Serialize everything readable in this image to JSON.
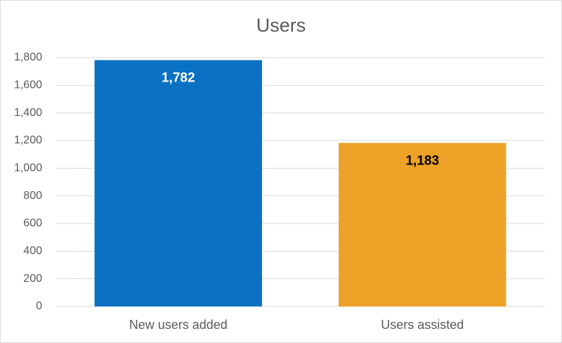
{
  "chart_data": {
    "type": "bar",
    "title": "Users",
    "categories": [
      "New users added",
      "Users assisted"
    ],
    "values": [
      1782,
      1183
    ],
    "value_labels": [
      "1,782",
      "1,183"
    ],
    "colors": [
      "#0b72c3",
      "#eda126"
    ],
    "value_label_colors": [
      "#ffffff",
      "#000000"
    ],
    "ylim": [
      0,
      1800
    ],
    "yticks": [
      0,
      200,
      400,
      600,
      800,
      {
        "value": 1000,
        "label": "1,000"
      },
      {
        "value": 1200,
        "label": "1,200"
      },
      {
        "value": 1400,
        "label": "1,400"
      },
      {
        "value": 1600,
        "label": "1,600"
      },
      {
        "value": 1800,
        "label": "1,800"
      }
    ],
    "grid": true
  }
}
